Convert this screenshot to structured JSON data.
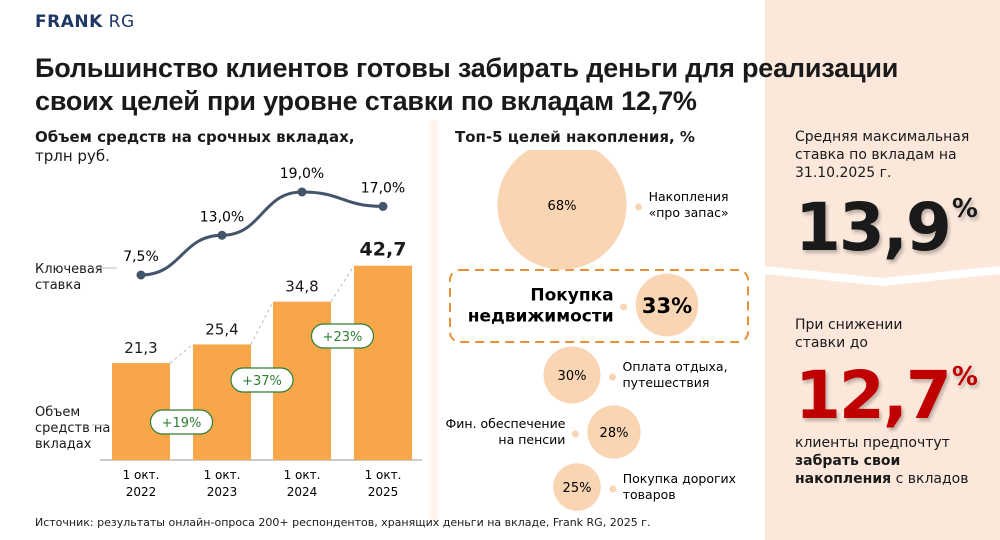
{
  "logo": {
    "bold": "FRANK",
    "light": "RG",
    "color": "#1f3864"
  },
  "title": "Большинство клиентов готовы забирать деньги для реализации своих целей при уровне ставки по вкладам 12,7%",
  "chart_data": [
    {
      "type": "bar",
      "title": "Объем средств на срочных вкладах,",
      "subtitle": "трлн руб.",
      "categories": [
        "1 окт. 2022",
        "1 окт. 2023",
        "1 окт. 2024",
        "1 окт. 2025"
      ],
      "series": [
        {
          "name": "Объем средств на вкладах",
          "type": "bar",
          "values": [
            21.3,
            25.4,
            34.8,
            42.7
          ],
          "labels": [
            "21,3",
            "25,4",
            "34,8",
            "42,7"
          ],
          "color": "#f8a64a"
        },
        {
          "name": "Ключевая ставка",
          "type": "line",
          "values": [
            7.5,
            13.0,
            19.0,
            17.0
          ],
          "labels": [
            "7,5%",
            "13,0%",
            "19,0%",
            "17,0%"
          ],
          "color": "#44546a"
        }
      ],
      "growth_badges": [
        "+19%",
        "+37%",
        "+23%"
      ],
      "growth_color": "#2e7d32",
      "grid": false
    },
    {
      "type": "bubble",
      "title": "Топ-5 целей накопления, %",
      "categories": [
        "Накопления «про запас»",
        "Покупка недвижимости",
        "Оплата отдыха, путешествия",
        "Фин. обеспечение на пенсии",
        "Покупка дорогих товаров"
      ],
      "values": [
        68,
        33,
        30,
        28,
        25
      ],
      "labels": [
        "68%",
        "33%",
        "30%",
        "28%",
        "25%"
      ],
      "highlight": "Покупка недвижимости",
      "color": "#fad5b3"
    }
  ],
  "right": {
    "avg_label": "Средняя максимальная ставка по вкладам на 31.10.2025 г.",
    "avg_value": "13,9",
    "percent": "%",
    "drop_label": "При снижении ставки до",
    "drop_value": "12,7",
    "drop_color": "#c00000",
    "outcome_pre": "клиенты предпочтут",
    "outcome_bold": "забрать свои накопления",
    "outcome_post": "с вкладов"
  },
  "source": "Источник: результаты онлайн-опроса 200+ респондентов, хранящих деньги на вкладе, Frank RG, 2025 г."
}
